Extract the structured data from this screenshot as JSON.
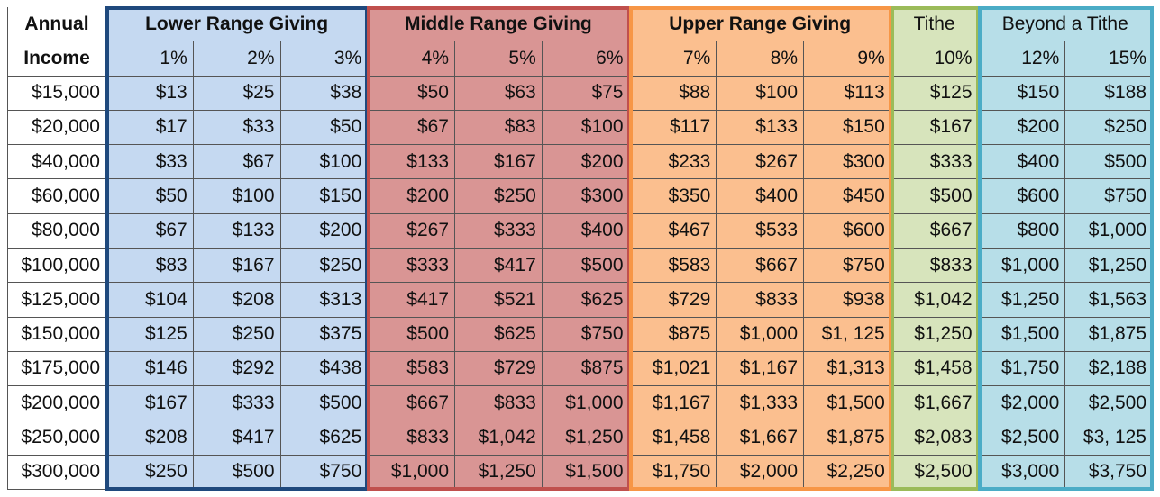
{
  "header": {
    "annual": "Annual",
    "income": "Income",
    "groups": [
      {
        "key": "lower",
        "label": "Lower Range Giving",
        "span": 3,
        "bold": true,
        "border": "#1f497d"
      },
      {
        "key": "middle",
        "label": "Middle Range Giving",
        "span": 3,
        "bold": true,
        "border": "#c0504d"
      },
      {
        "key": "upper",
        "label": "Upper Range Giving",
        "span": 3,
        "bold": true,
        "border": "#f79646"
      },
      {
        "key": "tithe",
        "label": "Tithe",
        "span": 1,
        "bold": false,
        "border": "#9bbb59"
      },
      {
        "key": "beyond",
        "label": "Beyond a Tithe",
        "span": 2,
        "bold": false,
        "border": "#4bacc6"
      }
    ]
  },
  "percents": [
    "1%",
    "2%",
    "3%",
    "4%",
    "5%",
    "6%",
    "7%",
    "8%",
    "9%",
    "10%",
    "12%",
    "15%"
  ],
  "column_groups": [
    "lower",
    "lower",
    "lower",
    "middle",
    "middle",
    "middle",
    "upper",
    "upper",
    "upper",
    "tithe",
    "beyond",
    "beyond"
  ],
  "rows": [
    {
      "income": "$15,000",
      "values": [
        "$13",
        "$25",
        "$38",
        "$50",
        "$63",
        "$75",
        "$88",
        "$100",
        "$113",
        "$125",
        "$150",
        "$188"
      ]
    },
    {
      "income": "$20,000",
      "values": [
        "$17",
        "$33",
        "$50",
        "$67",
        "$83",
        "$100",
        "$117",
        "$133",
        "$150",
        "$167",
        "$200",
        "$250"
      ]
    },
    {
      "income": "$40,000",
      "values": [
        "$33",
        "$67",
        "$100",
        "$133",
        "$167",
        "$200",
        "$233",
        "$267",
        "$300",
        "$333",
        "$400",
        "$500"
      ]
    },
    {
      "income": "$60,000",
      "values": [
        "$50",
        "$100",
        "$150",
        "$200",
        "$250",
        "$300",
        "$350",
        "$400",
        "$450",
        "$500",
        "$600",
        "$750"
      ]
    },
    {
      "income": "$80,000",
      "values": [
        "$67",
        "$133",
        "$200",
        "$267",
        "$333",
        "$400",
        "$467",
        "$533",
        "$600",
        "$667",
        "$800",
        "$1,000"
      ]
    },
    {
      "income": "$100,000",
      "values": [
        "$83",
        "$167",
        "$250",
        "$333",
        "$417",
        "$500",
        "$583",
        "$667",
        "$750",
        "$833",
        "$1,000",
        "$1,250"
      ]
    },
    {
      "income": "$125,000",
      "values": [
        "$104",
        "$208",
        "$313",
        "$417",
        "$521",
        "$625",
        "$729",
        "$833",
        "$938",
        "$1,042",
        "$1,250",
        "$1,563"
      ]
    },
    {
      "income": "$150,000",
      "values": [
        "$125",
        "$250",
        "$375",
        "$500",
        "$625",
        "$750",
        "$875",
        "$1,000",
        "$1, 125",
        "$1,250",
        "$1,500",
        "$1,875"
      ]
    },
    {
      "income": "$175,000",
      "values": [
        "$146",
        "$292",
        "$438",
        "$583",
        "$729",
        "$875",
        "$1,021",
        "$1,167",
        "$1,313",
        "$1,458",
        "$1,750",
        "$2,188"
      ]
    },
    {
      "income": "$200,000",
      "values": [
        "$167",
        "$333",
        "$500",
        "$667",
        "$833",
        "$1,000",
        "$1,167",
        "$1,333",
        "$1,500",
        "$1,667",
        "$2,000",
        "$2,500"
      ]
    },
    {
      "income": "$250,000",
      "values": [
        "$208",
        "$417",
        "$625",
        "$833",
        "$1,042",
        "$1,250",
        "$1,458",
        "$1,667",
        "$1,875",
        "$2,083",
        "$2,500",
        "$3, 125"
      ]
    },
    {
      "income": "$300,000",
      "values": [
        "$250",
        "$500",
        "$750",
        "$1,000",
        "$1,250",
        "$1,500",
        "$1,750",
        "$2,000",
        "$2,250",
        "$2,500",
        "$3,000",
        "$3,750"
      ]
    }
  ]
}
